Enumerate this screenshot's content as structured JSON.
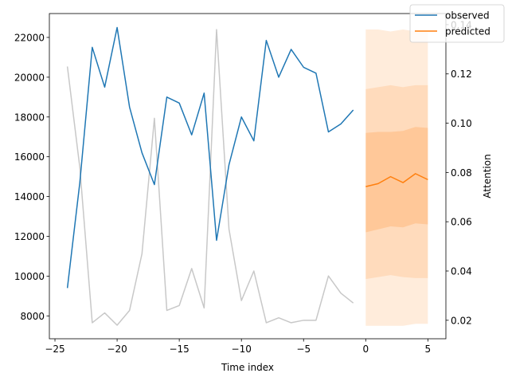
{
  "chart_data": {
    "type": "line",
    "xlabel": "Time index",
    "ylabel": "",
    "y2label": "Attention",
    "xlim": [
      -25.45,
      6.45
    ],
    "ylim": [
      6850,
      23200
    ],
    "y2lim": [
      0.0125,
      0.1445
    ],
    "x_ticks": [
      -25,
      -20,
      -15,
      -10,
      -5,
      0,
      5
    ],
    "x_tick_labels": [
      "−25",
      "−20",
      "−15",
      "−10",
      "−5",
      "0",
      "5"
    ],
    "y_ticks": [
      8000,
      10000,
      12000,
      14000,
      16000,
      18000,
      20000,
      22000
    ],
    "y_tick_labels": [
      "8000",
      "10000",
      "12000",
      "14000",
      "16000",
      "18000",
      "20000",
      "22000"
    ],
    "y2_ticks": [
      0.02,
      0.04,
      0.06,
      0.08,
      0.1,
      0.12,
      0.14
    ],
    "y2_tick_labels": [
      "0.02",
      "0.04",
      "0.06",
      "0.08",
      "0.10",
      "0.12",
      "0.14"
    ],
    "legend_position": "top-right",
    "series": [
      {
        "name": "observed",
        "color": "#1f77b4",
        "axis": "left",
        "x": [
          -24,
          -23,
          -22,
          -21,
          -20,
          -19,
          -18,
          -17,
          -16,
          -15,
          -14,
          -13,
          -12,
          -11,
          -10,
          -9,
          -8,
          -7,
          -6,
          -5,
          -4,
          -3,
          -2,
          -1
        ],
        "y": [
          9400,
          14700,
          21500,
          19500,
          22500,
          18500,
          16200,
          14600,
          19000,
          18700,
          17100,
          19200,
          11800,
          15600,
          18000,
          16800,
          21850,
          20000,
          21400,
          20500,
          20200,
          17250,
          17650,
          18350
        ]
      },
      {
        "name": "predicted",
        "color": "#ff7f0e",
        "axis": "left",
        "x": [
          0,
          1,
          2,
          3,
          4,
          5
        ],
        "y": [
          14500,
          14650,
          15000,
          14700,
          15150,
          14850
        ]
      },
      {
        "name": "attention",
        "color": "#c8c8c8",
        "axis": "right",
        "x": [
          -24,
          -23,
          -22,
          -21,
          -20,
          -19,
          -18,
          -17,
          -16,
          -15,
          -14,
          -13,
          -12,
          -11,
          -10,
          -9,
          -8,
          -7,
          -6,
          -5,
          -4,
          -3,
          -2,
          -1
        ],
        "y": [
          0.123,
          0.082,
          0.019,
          0.023,
          0.018,
          0.024,
          0.047,
          0.102,
          0.024,
          0.026,
          0.041,
          0.025,
          0.138,
          0.057,
          0.028,
          0.04,
          0.019,
          0.021,
          0.019,
          0.02,
          0.02,
          0.038,
          0.031,
          0.027
        ]
      }
    ],
    "prediction_bands": {
      "x": [
        0,
        1,
        2,
        3,
        4,
        5
      ],
      "color": "#ff7f0e",
      "bands": [
        {
          "lower": [
            7500,
            7500,
            7500,
            7500,
            7600,
            7600
          ],
          "upper": [
            22400,
            22400,
            22300,
            22400,
            22300,
            22300
          ],
          "opacity": 0.15
        },
        {
          "lower": [
            9850,
            9950,
            10050,
            9950,
            9900,
            9900
          ],
          "upper": [
            19400,
            19500,
            19600,
            19500,
            19600,
            19600
          ],
          "opacity": 0.15
        },
        {
          "lower": [
            12200,
            12350,
            12500,
            12450,
            12650,
            12600
          ],
          "upper": [
            17200,
            17250,
            17250,
            17300,
            17500,
            17450
          ],
          "opacity": 0.2
        }
      ]
    }
  }
}
